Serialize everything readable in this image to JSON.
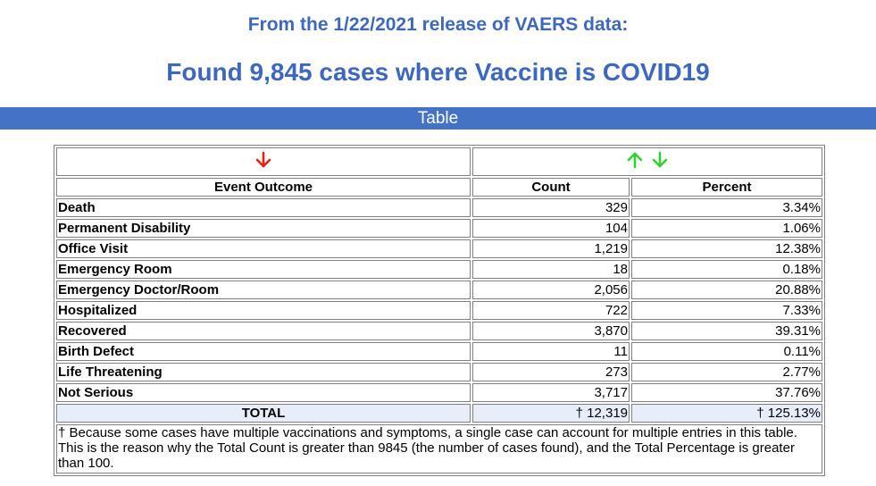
{
  "header": {
    "release_line": "From the 1/22/2021 release of VAERS data:",
    "found_line": "Found 9,845 cases where Vaccine is COVID19"
  },
  "band": {
    "label": "Table"
  },
  "sort_controls": {
    "outcome_sort": "down-arrow-icon",
    "count_sort": [
      "up-arrow-icon",
      "down-arrow-icon"
    ],
    "colors": {
      "active_red": "#e8200c",
      "inactive_green": "#2fd12f"
    }
  },
  "table": {
    "columns": [
      "Event Outcome",
      "Count",
      "Percent"
    ],
    "rows": [
      {
        "outcome": "Death",
        "count": "329",
        "percent": "3.34%"
      },
      {
        "outcome": "Permanent Disability",
        "count": "104",
        "percent": "1.06%"
      },
      {
        "outcome": "Office Visit",
        "count": "1,219",
        "percent": "12.38%"
      },
      {
        "outcome": "Emergency Room",
        "count": "18",
        "percent": "0.18%"
      },
      {
        "outcome": "Emergency Doctor/Room",
        "count": "2,056",
        "percent": "20.88%"
      },
      {
        "outcome": "Hospitalized",
        "count": "722",
        "percent": "7.33%"
      },
      {
        "outcome": "Recovered",
        "count": "3,870",
        "percent": "39.31%"
      },
      {
        "outcome": "Birth Defect",
        "count": "11",
        "percent": "0.11%"
      },
      {
        "outcome": "Life Threatening",
        "count": "273",
        "percent": "2.77%"
      },
      {
        "outcome": "Not Serious",
        "count": "3,717",
        "percent": "37.76%"
      }
    ],
    "total": {
      "label": "TOTAL",
      "count": "† 12,319",
      "percent": "† 125.13%"
    },
    "footnote": "† Because some cases have multiple vaccinations and symptoms, a single case can account for multiple entries in this table. This is the reason why the Total Count is greater than 9845 (the number of cases found), and the Total Percentage is greater than 100."
  }
}
